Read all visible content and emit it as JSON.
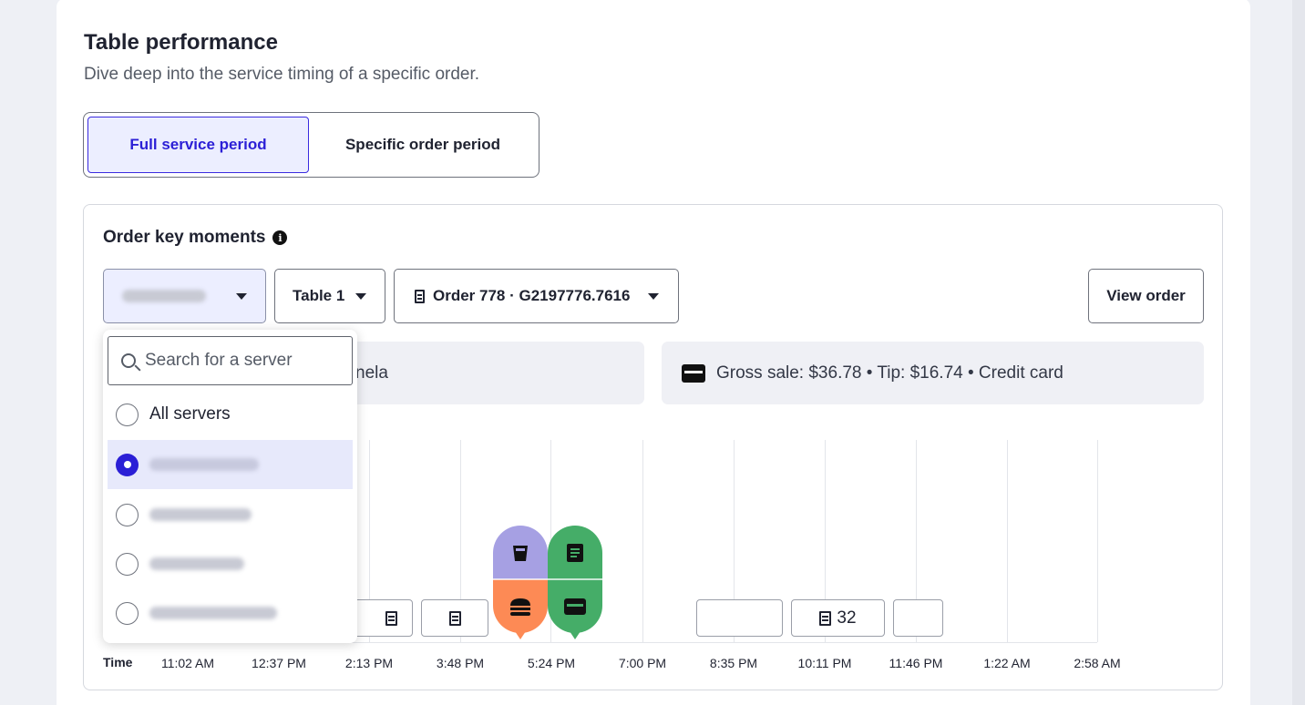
{
  "page": {
    "title": "Table performance",
    "subtitle": "Dive deep into the service timing of a specific order."
  },
  "period_toggle": {
    "options": [
      "Full service period",
      "Specific order period"
    ],
    "selected": "Full service period"
  },
  "panel": {
    "title": "Order key moments",
    "info_icon": "info-icon",
    "table_select": "Table 1",
    "order_select": "Order 778 · G2197776.7616",
    "view_order_label": "View order",
    "server_info_partial": "nela",
    "payment_info": "Gross sale: $36.78 • Tip: $16.74 • Credit card"
  },
  "server_dropdown": {
    "search_placeholder": "Search for a server",
    "all_servers_label": "All servers",
    "options_redacted": 4,
    "selected_index": 1
  },
  "timeline": {
    "axis_title": "Time",
    "ticks": [
      "11:02 AM",
      "12:37 PM",
      "2:13 PM",
      "3:48 PM",
      "5:24 PM",
      "7:00 PM",
      "8:35 PM",
      "10:11 PM",
      "11:46 PM",
      "1:22 AM",
      "2:58 AM"
    ],
    "event_box_count": "32",
    "markers": [
      {
        "top_icon": "drink-icon",
        "top_color": "#a6a0e3",
        "bottom_icon": "burger-icon",
        "bottom_color": "#fd8a55"
      },
      {
        "top_icon": "receipt-icon",
        "top_color": "#45ad68",
        "bottom_icon": "credit-card-icon",
        "bottom_color": "#45ad68"
      }
    ]
  }
}
